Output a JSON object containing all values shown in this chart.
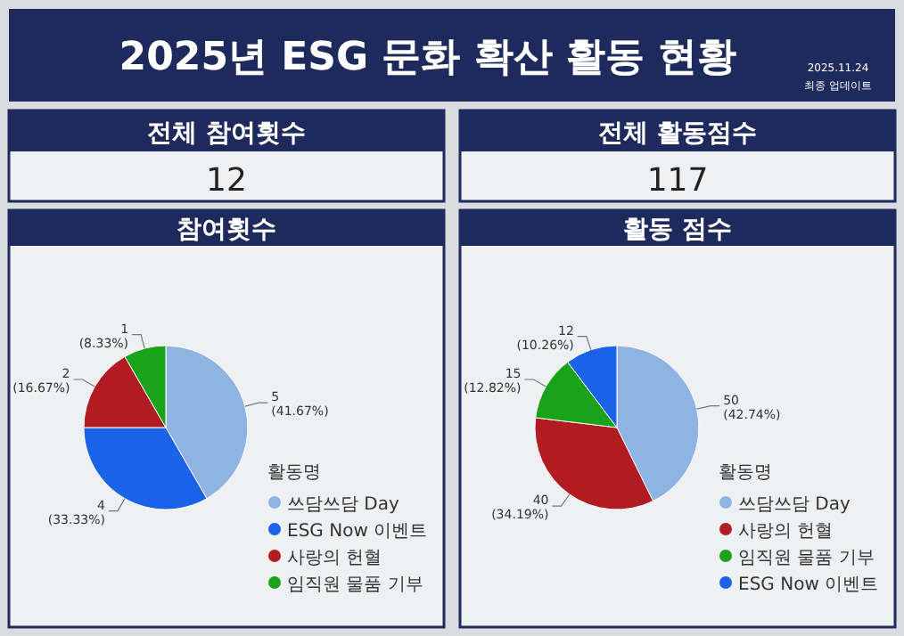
{
  "chart_data": [
    {
      "type": "other",
      "title": "2025년 ESG 문화 확산 활동 현황",
      "subtitle": "2025.11.24",
      "annotations": [
        "최종 업데이트"
      ]
    },
    {
      "type": "other",
      "title": "전체 참여횟수",
      "values": [
        12
      ],
      "data_labels": true
    },
    {
      "type": "other",
      "title": "전체 활동점수",
      "values": [
        117
      ],
      "data_labels": true
    },
    {
      "type": "pie",
      "title": "참여횟수",
      "legend_title": "활동명",
      "legend": "right",
      "categories": [
        "쓰담쓰담 Day",
        "ESG Now 이벤트",
        "사랑의 헌혈",
        "임직원 물품 기부"
      ],
      "values": [
        5,
        4,
        2,
        1
      ],
      "colors": [
        "#8fb4e3",
        "#1a63e8",
        "#b01c22",
        "#1aa31a"
      ],
      "value_labels": [
        "5 (41.67%)",
        "4 (33.33%)",
        "2 (16.67%)",
        "1 (8.33%)"
      ]
    },
    {
      "type": "pie",
      "title": "활동 점수",
      "legend_title": "활동명",
      "legend": "right",
      "categories": [
        "쓰담쓰담 Day",
        "사랑의 헌혈",
        "임직원 물품 기부",
        "ESG Now 이벤트"
      ],
      "values": [
        50,
        40,
        15,
        12
      ],
      "colors": [
        "#8fb4e3",
        "#b01c22",
        "#1aa31a",
        "#1a63e8"
      ],
      "value_labels": [
        "50 (42.74%)",
        "40 (34.19%)",
        "15 (12.82%)",
        "12 (10.26%)"
      ]
    }
  ]
}
